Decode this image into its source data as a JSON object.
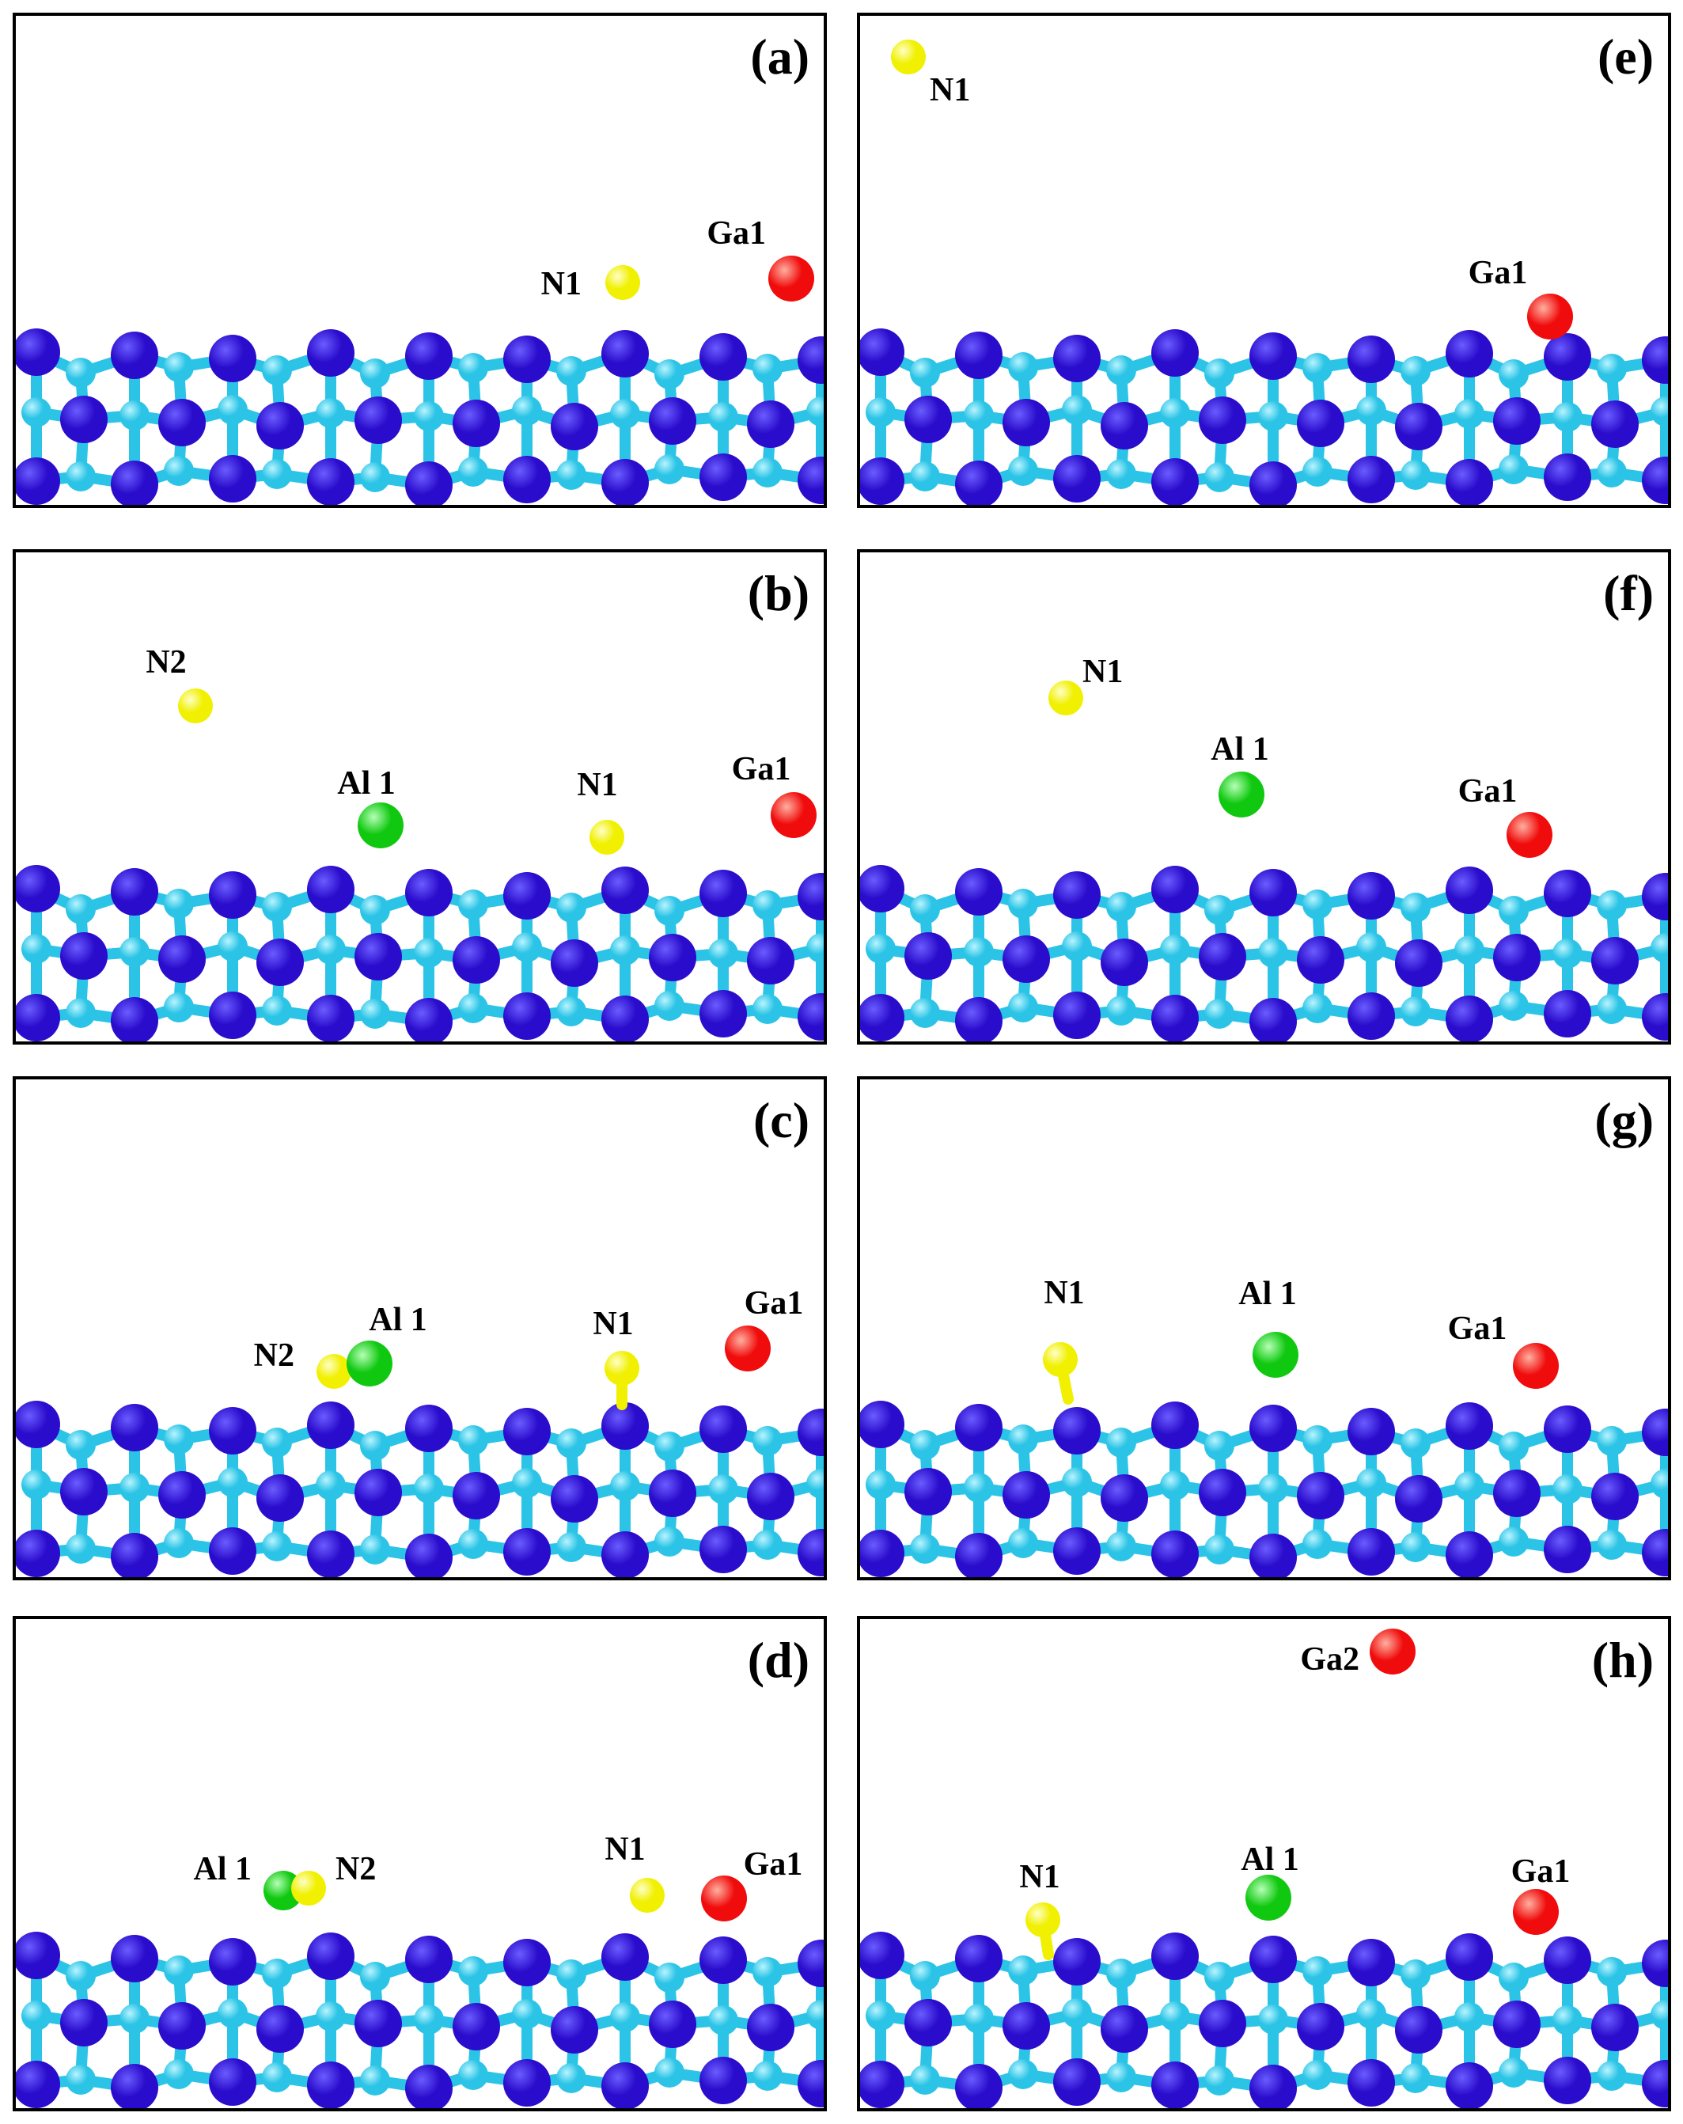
{
  "colors": {
    "surface_n": "#2a0ccc",
    "surface_ga": "#2cc4e6",
    "adatom_n": "#f0f000",
    "adatom_al": "#10c810",
    "adatom_ga": "#f00c0c",
    "frame": "#000000"
  },
  "panels": [
    {
      "id": "a",
      "label": "(a)",
      "atoms": [
        {
          "label": "N1",
          "element": "N"
        },
        {
          "label": "Ga1",
          "element": "Ga"
        }
      ]
    },
    {
      "id": "b",
      "label": "(b)",
      "atoms": [
        {
          "label": "N2",
          "element": "N"
        },
        {
          "label": "Al 1",
          "element": "Al"
        },
        {
          "label": "N1",
          "element": "N"
        },
        {
          "label": "Ga1",
          "element": "Ga"
        }
      ]
    },
    {
      "id": "c",
      "label": "(c)",
      "atoms": [
        {
          "label": "N2",
          "element": "N"
        },
        {
          "label": "Al 1",
          "element": "Al"
        },
        {
          "label": "N1",
          "element": "N"
        },
        {
          "label": "Ga1",
          "element": "Ga"
        }
      ]
    },
    {
      "id": "d",
      "label": "(d)",
      "atoms": [
        {
          "label": "Al 1",
          "element": "Al"
        },
        {
          "label": "N2",
          "element": "N"
        },
        {
          "label": "N1",
          "element": "N"
        },
        {
          "label": "Ga1",
          "element": "Ga"
        }
      ]
    },
    {
      "id": "e",
      "label": "(e)",
      "atoms": [
        {
          "label": "N1",
          "element": "N"
        },
        {
          "label": "Ga1",
          "element": "Ga"
        }
      ]
    },
    {
      "id": "f",
      "label": "(f)",
      "atoms": [
        {
          "label": "N1",
          "element": "N"
        },
        {
          "label": "Al 1",
          "element": "Al"
        },
        {
          "label": "Ga1",
          "element": "Ga"
        }
      ]
    },
    {
      "id": "g",
      "label": "(g)",
      "atoms": [
        {
          "label": "N1",
          "element": "N"
        },
        {
          "label": "Al 1",
          "element": "Al"
        },
        {
          "label": "Ga1",
          "element": "Ga"
        }
      ]
    },
    {
      "id": "h",
      "label": "(h)",
      "atoms": [
        {
          "label": "Ga2",
          "element": "Ga"
        },
        {
          "label": "N1",
          "element": "N"
        },
        {
          "label": "Al 1",
          "element": "Al"
        },
        {
          "label": "Ga1",
          "element": "Ga"
        }
      ]
    }
  ]
}
